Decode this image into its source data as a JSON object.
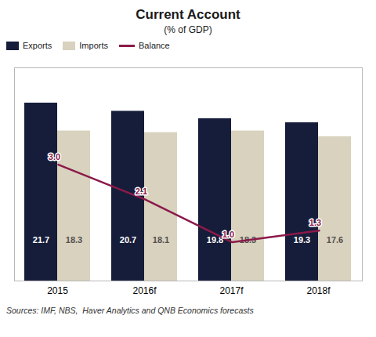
{
  "chart_data": {
    "type": "bar",
    "title": "Current Account",
    "subtitle": "(% of GDP)",
    "categories": [
      "2015",
      "2016f",
      "2017f",
      "2018f"
    ],
    "series": [
      {
        "name": "Exports",
        "type": "bar",
        "color": "#161d3a",
        "values": [
          21.7,
          20.7,
          19.8,
          19.3
        ]
      },
      {
        "name": "Imports",
        "type": "bar",
        "color": "#d8d2be",
        "values": [
          18.3,
          18.1,
          18.3,
          17.6
        ]
      },
      {
        "name": "Balance",
        "type": "line",
        "axis": "y2",
        "color": "#8b1a4a",
        "values": [
          3.0,
          2.1,
          1.0,
          1.3
        ],
        "value_labels": [
          "3.0",
          "2.1",
          "1.0",
          "1.3"
        ]
      }
    ],
    "ylim": [
      0,
      26
    ],
    "y2lim": [
      0,
      5.5
    ],
    "tick_labels": "x",
    "grid": false,
    "legend": "upper left",
    "data_labels": true,
    "annotations": [
      "Sources: IMF, NBS,  Haver Analytics and QNB Economics forecasts"
    ]
  }
}
